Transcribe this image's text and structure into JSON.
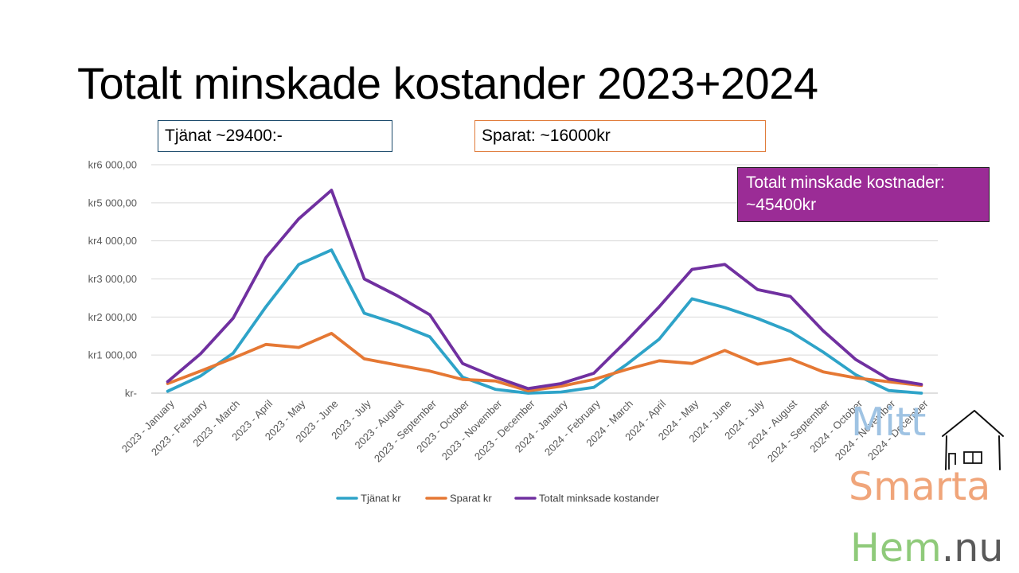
{
  "title": "Totalt minskade kostander 2023+2024",
  "callouts": {
    "tjanat": "Tjänat ~29400:-",
    "sparat": "Sparat: ~16000kr",
    "total": "Totalt minskade kostnader: ~45400kr"
  },
  "colors": {
    "tjanat": "#2ea3c8",
    "sparat": "#e57834",
    "total": "#7030a0",
    "total_box": "#9b2c96",
    "grid": "#d9d9d9"
  },
  "logo": {
    "line1": "Mitt",
    "line2": "Smarta",
    "line3a": "Hem",
    "line3b": ".nu",
    "icon": "house-icon"
  },
  "chart_data": {
    "type": "line",
    "title": "",
    "xlabel": "",
    "ylabel": "",
    "ylim": [
      0,
      6000
    ],
    "yticks": [
      0,
      1000,
      2000,
      3000,
      4000,
      5000,
      6000
    ],
    "ytick_labels": [
      "kr-",
      "kr1 000,00",
      "kr2 000,00",
      "kr3 000,00",
      "kr4 000,00",
      "kr5 000,00",
      "kr6 000,00"
    ],
    "grid": true,
    "legend_position": "bottom",
    "categories": [
      "2023 - January",
      "2023 - February",
      "2023 - March",
      "2023 - April",
      "2023 - May",
      "2023 - June",
      "2023 - July",
      "2023 - August",
      "2023 - September",
      "2023 - October",
      "2023 - November",
      "2023 - December",
      "2024 - January",
      "2024 - February",
      "2024 - March",
      "2024 - April",
      "2024 - May",
      "2024 - June",
      "2024 - July",
      "2024 - August",
      "2024 - September",
      "2024 - October",
      "2024 - November",
      "2024 - December"
    ],
    "series": [
      {
        "name": "Tjänat kr",
        "values": [
          50,
          450,
          1050,
          2270,
          3380,
          3760,
          2100,
          1820,
          1480,
          420,
          100,
          0,
          30,
          150,
          750,
          1420,
          2480,
          2250,
          1960,
          1620,
          1080,
          480,
          70,
          0
        ]
      },
      {
        "name": "Sparat kr",
        "values": [
          250,
          580,
          920,
          1280,
          1200,
          1570,
          900,
          740,
          580,
          360,
          320,
          60,
          180,
          360,
          620,
          850,
          780,
          1120,
          760,
          900,
          560,
          400,
          300,
          200
        ]
      },
      {
        "name": "Totalt minksade kostander",
        "values": [
          300,
          1030,
          1970,
          3560,
          4580,
          5330,
          3000,
          2560,
          2060,
          780,
          420,
          120,
          250,
          520,
          1370,
          2270,
          3250,
          3380,
          2720,
          2540,
          1640,
          880,
          370,
          230
        ]
      }
    ]
  }
}
